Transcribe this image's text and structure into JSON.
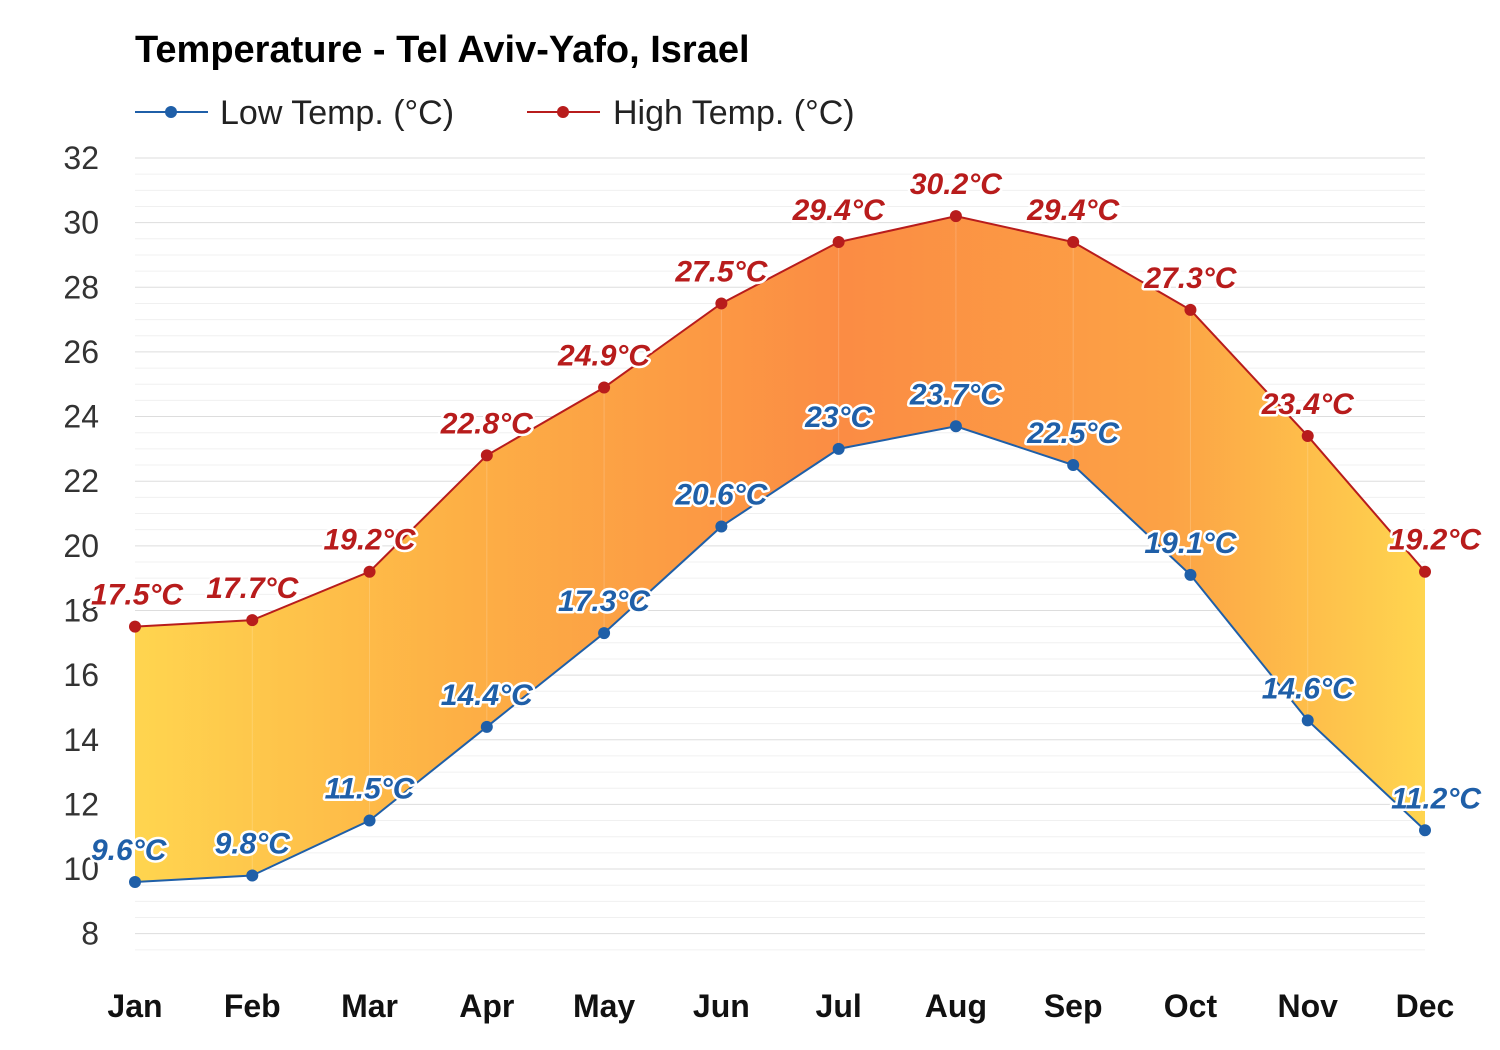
{
  "chart_data": {
    "type": "line",
    "title": "Temperature - Tel Aviv-Yafo, Israel",
    "xlabel": "",
    "ylabel": "",
    "categories": [
      "Jan",
      "Feb",
      "Mar",
      "Apr",
      "May",
      "Jun",
      "Jul",
      "Aug",
      "Sep",
      "Oct",
      "Nov",
      "Dec"
    ],
    "series": [
      {
        "name": "Low Temp. (°C)",
        "color": "#1f5fa8",
        "values": [
          9.6,
          9.8,
          11.5,
          14.4,
          17.3,
          20.6,
          23,
          23.7,
          22.5,
          19.1,
          14.6,
          11.2
        ],
        "labels": [
          "9.6°C",
          "9.8°C",
          "11.5°C",
          "14.4°C",
          "17.3°C",
          "20.6°C",
          "23°C",
          "23.7°C",
          "22.5°C",
          "19.1°C",
          "14.6°C",
          "11.2°C"
        ]
      },
      {
        "name": "High Temp. (°C)",
        "color": "#b81c1c",
        "values": [
          17.5,
          17.7,
          19.2,
          22.8,
          24.9,
          27.5,
          29.4,
          30.2,
          29.4,
          27.3,
          23.4,
          19.2
        ],
        "labels": [
          "17.5°C",
          "17.7°C",
          "19.2°C",
          "22.8°C",
          "24.9°C",
          "27.5°C",
          "29.4°C",
          "30.2°C",
          "29.4°C",
          "27.3°C",
          "23.4°C",
          "19.2°C"
        ]
      }
    ],
    "ylim": [
      7,
      32
    ],
    "yticks": [
      "8",
      "10",
      "12",
      "14",
      "16",
      "18",
      "20",
      "22",
      "24",
      "26",
      "28",
      "30",
      "32"
    ],
    "grid": true,
    "legend_position": "top-left",
    "fill_between": "yellow-to-orange gradient shaded band between low and high"
  }
}
